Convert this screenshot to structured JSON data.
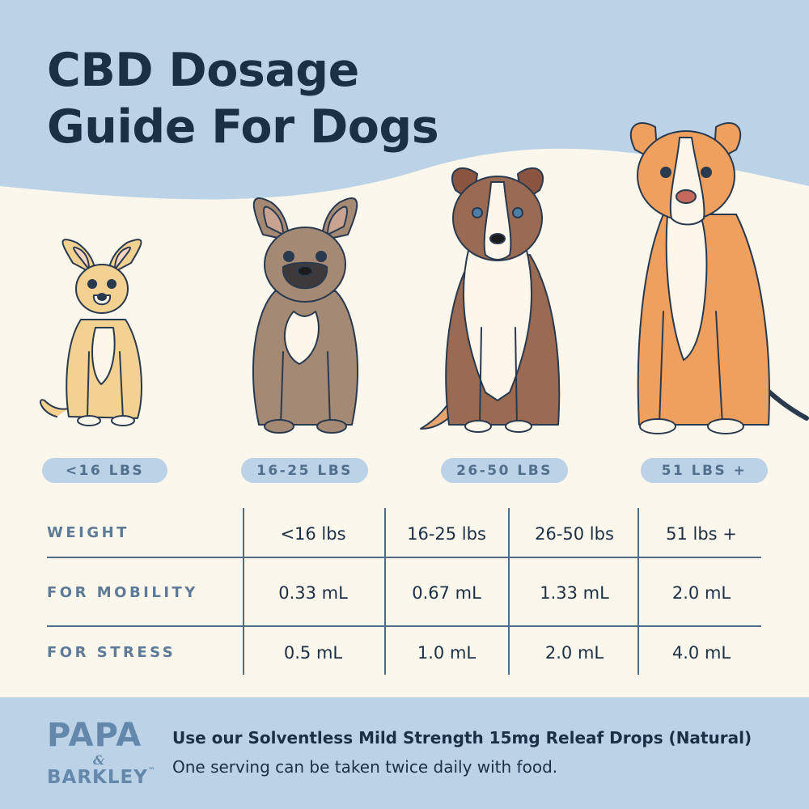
{
  "header": {
    "title_line1": "CBD Dosage",
    "title_line2": "Guide For Dogs"
  },
  "dogs": [
    {
      "label": "<16 LBS",
      "icon": "chihuahua-icon"
    },
    {
      "label": "16-25 LBS",
      "icon": "french-bulldog-icon"
    },
    {
      "label": "26-50 LBS",
      "icon": "australian-shepherd-icon"
    },
    {
      "label": "51 LBS +",
      "icon": "pitbull-icon"
    }
  ],
  "table": {
    "rows": [
      {
        "label": "WEIGHT",
        "values": [
          "<16 lbs",
          "16-25 lbs",
          "26-50 lbs",
          "51 lbs +"
        ]
      },
      {
        "label": "FOR MOBILITY",
        "values": [
          "0.33 mL",
          "0.67 mL",
          "1.33 mL",
          "2.0 mL"
        ]
      },
      {
        "label": "FOR STRESS",
        "values": [
          "0.5 mL",
          "1.0 mL",
          "2.0 mL",
          "4.0 mL"
        ]
      }
    ]
  },
  "footer": {
    "logo_top": "PAPA",
    "logo_amp": "&",
    "logo_bottom": "BARKLEY",
    "logo_tm": "™",
    "line1": "Use our Solventless Mild Strength 15mg Releaf Drops (Natural)",
    "line2": "One serving can be taken twice daily with food."
  },
  "colors": {
    "navy": "#1b2f45",
    "light_blue": "#bcd2e6",
    "cream": "#fbf7ec",
    "label_blue": "#5d7b98"
  }
}
